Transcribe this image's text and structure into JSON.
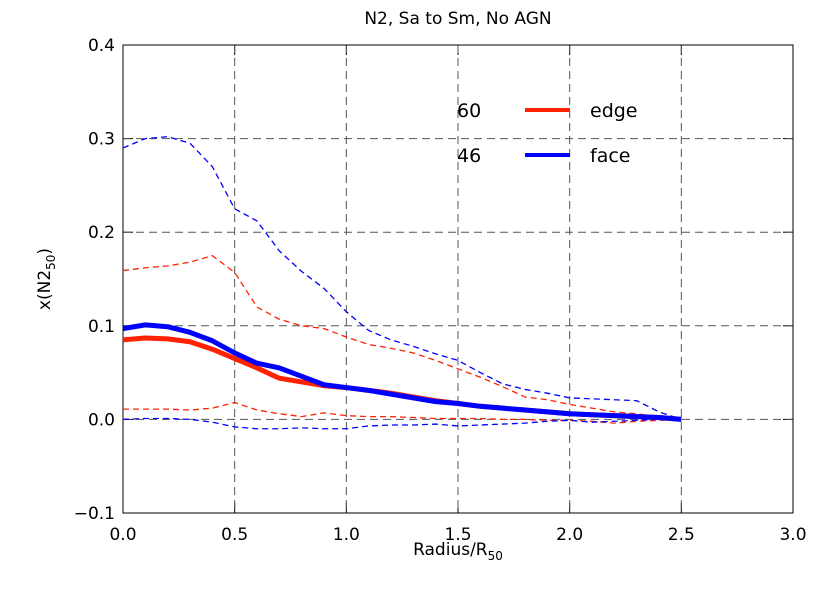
{
  "chart_data": {
    "type": "line",
    "title": "N2, Sa to Sm, No AGN",
    "xlabel": [
      "Radius/R",
      "50"
    ],
    "ylabel": [
      "x(N2",
      "50",
      ")"
    ],
    "x": [
      0.0,
      0.1,
      0.2,
      0.3,
      0.4,
      0.5,
      0.6,
      0.7,
      0.8,
      0.9,
      1.0,
      1.1,
      1.2,
      1.3,
      1.4,
      1.5,
      1.6,
      1.7,
      1.8,
      1.9,
      2.0,
      2.1,
      2.2,
      2.3,
      2.4,
      2.5
    ],
    "xlim": [
      0,
      3
    ],
    "ylim": [
      -0.1,
      0.4
    ],
    "xticks": [
      {
        "value": 0,
        "label": "0.0"
      },
      0.5,
      {
        "value": 1,
        "label": "1.0"
      },
      1.5,
      {
        "value": 2,
        "label": "2.0"
      },
      2.5,
      {
        "value": 3,
        "label": "3.0"
      }
    ],
    "yticks": [
      {
        "value": -0.1,
        "label": "−0.1"
      },
      {
        "value": 0,
        "label": "0.0"
      },
      0.1,
      0.2,
      0.3,
      0.4
    ],
    "grid": true,
    "series": [
      {
        "color": "#ff2200",
        "style": "dashed",
        "values": [
          0.159,
          0.162,
          0.164,
          0.168,
          0.175,
          0.157,
          0.12,
          0.107,
          0.1,
          0.097,
          0.088,
          0.08,
          0.076,
          0.071,
          0.063,
          0.054,
          0.045,
          0.035,
          0.024,
          0.021,
          0.016,
          0.012,
          0.008,
          0.006,
          0.003,
          0.0
        ]
      },
      {
        "color": "#ff2200",
        "style": "dashed",
        "values": [
          0.011,
          0.011,
          0.011,
          0.01,
          0.012,
          0.018,
          0.01,
          0.006,
          0.003,
          0.007,
          0.004,
          0.003,
          0.003,
          0.002,
          0.001,
          0.001,
          0.001,
          0.0,
          0.0,
          -0.001,
          -0.001,
          -0.002,
          -0.004,
          -0.002,
          -0.001,
          0.0
        ]
      },
      {
        "color": "#0000ff",
        "style": "dashed",
        "values": [
          0.29,
          0.3,
          0.302,
          0.295,
          0.27,
          0.225,
          0.212,
          0.18,
          0.158,
          0.14,
          0.115,
          0.095,
          0.085,
          0.078,
          0.07,
          0.063,
          0.05,
          0.038,
          0.032,
          0.028,
          0.023,
          0.022,
          0.021,
          0.02,
          0.008,
          0.0
        ]
      },
      {
        "color": "#0000ff",
        "style": "dashed",
        "values": [
          0.0,
          0.001,
          0.001,
          0.0,
          -0.003,
          -0.008,
          -0.01,
          -0.01,
          -0.009,
          -0.01,
          -0.01,
          -0.007,
          -0.006,
          -0.006,
          -0.005,
          -0.007,
          -0.006,
          -0.005,
          -0.004,
          -0.002,
          -0.001,
          -0.003,
          -0.002,
          -0.001,
          0.0,
          0.0
        ]
      },
      {
        "name": "edge",
        "count": 60,
        "color": "#ff2200",
        "style": "solid",
        "values": [
          0.085,
          0.087,
          0.086,
          0.083,
          0.075,
          0.065,
          0.055,
          0.044,
          0.04,
          0.036,
          0.034,
          0.031,
          0.028,
          0.024,
          0.02,
          0.017,
          0.014,
          0.012,
          0.01,
          0.008,
          0.006,
          0.005,
          0.004,
          0.003,
          0.002,
          0.0
        ]
      },
      {
        "name": "face",
        "count": 46,
        "color": "#0000ff",
        "style": "solid",
        "values": [
          0.097,
          0.101,
          0.099,
          0.093,
          0.084,
          0.071,
          0.06,
          0.055,
          0.046,
          0.037,
          0.034,
          0.031,
          0.027,
          0.023,
          0.019,
          0.017,
          0.014,
          0.012,
          0.01,
          0.008,
          0.006,
          0.005,
          0.004,
          0.003,
          0.002,
          0.0
        ]
      }
    ]
  }
}
